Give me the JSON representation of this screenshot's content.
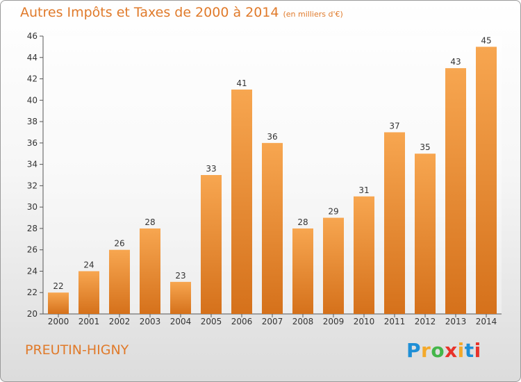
{
  "chart_data": {
    "type": "bar",
    "title": "Autres Impôts et Taxes de 2000 à 2014",
    "unit_label": "(en milliers d'€)",
    "categories": [
      "2000",
      "2001",
      "2002",
      "2003",
      "2004",
      "2005",
      "2006",
      "2007",
      "2008",
      "2009",
      "2010",
      "2011",
      "2012",
      "2013",
      "2014"
    ],
    "values": [
      22,
      24,
      26,
      28,
      23,
      33,
      41,
      36,
      28,
      29,
      31,
      37,
      35,
      43,
      45
    ],
    "ylim": [
      20,
      46
    ],
    "yticks": [
      20,
      22,
      24,
      26,
      28,
      30,
      32,
      34,
      36,
      38,
      40,
      42,
      44,
      46
    ],
    "grid": false,
    "data_labels": true,
    "bar_color_top": "#f7a650",
    "bar_color_bottom": "#d5711b",
    "xlabel": "",
    "ylabel": ""
  },
  "commune": "PREUTIN-HIGNY",
  "brand": {
    "letters": [
      "P",
      "r",
      "o",
      "x",
      "i",
      "t",
      "i"
    ],
    "colors": [
      "#1f8fd6",
      "#f4a92a",
      "#44b64a",
      "#e8322a",
      "#f4a92a",
      "#1f8fd6",
      "#e8322a"
    ]
  }
}
